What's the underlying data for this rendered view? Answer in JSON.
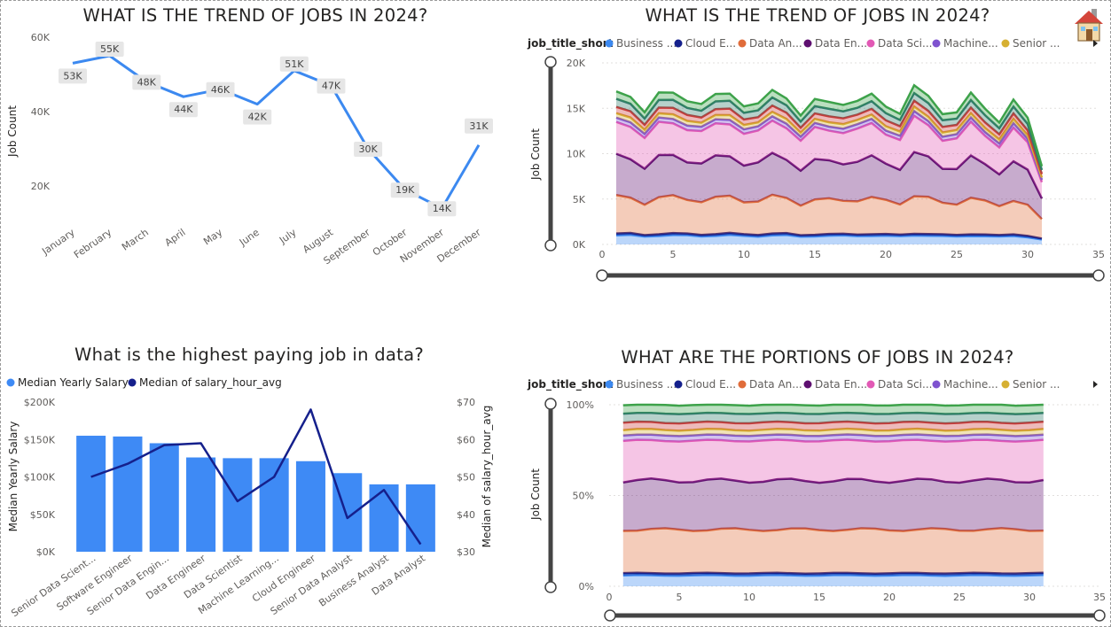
{
  "colors": {
    "blue": "#3c89f0",
    "navy": "#15208c",
    "bar": "#3e8af5",
    "orange": "#e06c3a",
    "purple": "#5e0f70",
    "pink": "#e259b5",
    "violet": "#7f53cf",
    "gold": "#d6b032",
    "red": "#cc3a3a",
    "teal": "#2f7a6b",
    "green": "#3da24a",
    "grid": "#e1dfdd",
    "slider": "#444444"
  },
  "icons": {
    "home": "house-icon",
    "legend_more": "caret-right-icon"
  },
  "chart_data": [
    {
      "type": "line",
      "title": "WHAT IS THE TREND OF JOBS IN 2024?",
      "xlabel": "",
      "ylabel": "Job Count",
      "ylim": [
        10000,
        60000
      ],
      "yticks": [
        "20K",
        "40K",
        "60K"
      ],
      "yticks_values": [
        20000,
        40000,
        60000
      ],
      "categories": [
        "January",
        "February",
        "March",
        "April",
        "May",
        "June",
        "July",
        "August",
        "September",
        "October",
        "November",
        "December"
      ],
      "values": [
        53000,
        55000,
        48000,
        44000,
        46000,
        42000,
        51000,
        47000,
        30000,
        19000,
        14000,
        31000
      ],
      "data_labels": [
        "53K",
        "55K",
        "48K",
        "44K",
        "46K",
        "42K",
        "51K",
        "47K",
        "30K",
        "19K",
        "14K",
        "31K"
      ]
    },
    {
      "type": "area",
      "stacked": true,
      "title": "WHAT IS THE TREND OF JOBS IN 2024?",
      "ylabel": "Job Count",
      "legend_title": "job_title_short",
      "legend_items": [
        "Business ...",
        "Cloud E...",
        "Data An...",
        "Data En...",
        "Data Sci...",
        "Machine...",
        "Senior ..."
      ],
      "x": [
        1,
        2,
        3,
        4,
        5,
        6,
        7,
        8,
        9,
        10,
        11,
        12,
        13,
        14,
        15,
        16,
        17,
        18,
        19,
        20,
        21,
        22,
        23,
        24,
        25,
        26,
        27,
        28,
        29,
        30,
        31
      ],
      "xlim": [
        0,
        35
      ],
      "xticks": [
        0,
        5,
        10,
        15,
        20,
        25,
        30,
        35
      ],
      "ylim": [
        0,
        20000
      ],
      "yticks": [
        "0K",
        "5K",
        "10K",
        "15K",
        "20K"
      ],
      "yticks_values": [
        0,
        5000,
        10000,
        15000,
        20000
      ],
      "totals": [
        16700,
        16700,
        14600,
        16300,
        16800,
        16200,
        15300,
        16200,
        16900,
        15500,
        15200,
        16800,
        16500,
        14300,
        15600,
        15700,
        15800,
        15700,
        16200,
        15400,
        14700,
        17200,
        16100,
        14700,
        14700,
        16300,
        14900,
        13800,
        15900,
        13600,
        8700
      ],
      "series": [
        {
          "name": "Business ...",
          "share": 0.06
        },
        {
          "name": "Cloud E...",
          "share": 0.012
        },
        {
          "name": "Data An...",
          "share": 0.24
        },
        {
          "name": "Data En...",
          "share": 0.27
        },
        {
          "name": "Data Sci...",
          "share": 0.22
        },
        {
          "name": "Machine...",
          "share": 0.03
        },
        {
          "name": "Senior ...",
          "share": 0.03
        },
        {
          "share": 0.04
        },
        {
          "share": 0.05
        },
        {
          "share": 0.048
        }
      ]
    },
    {
      "type": "bar",
      "title": "What is the highest paying job in data?",
      "legend_items": [
        "Median Yearly Salary",
        "Median of salary_hour_avg"
      ],
      "categories": [
        "Senior Data Scient...",
        "Software Engineer",
        "Senior Data Engin...",
        "Data Engineer",
        "Data Scientist",
        "Machine Learning...",
        "Cloud Engineer",
        "Senior Data Analyst",
        "Business Analyst",
        "Data Analyst"
      ],
      "ylabel": "Median Yearly Salary",
      "ylim": [
        0,
        200000
      ],
      "yticks": [
        "$0K",
        "$50K",
        "$100K",
        "$150K",
        "$200K"
      ],
      "yticks_values": [
        0,
        50000,
        100000,
        150000,
        200000
      ],
      "values": [
        155000,
        154000,
        145000,
        126000,
        125000,
        125000,
        121000,
        105000,
        90000,
        90000
      ],
      "y2label": "Median of salary_hour_avg",
      "y2lim": [
        30,
        70
      ],
      "y2ticks": [
        "$30",
        "$40",
        "$50",
        "$60",
        "$70"
      ],
      "y2ticks_values": [
        30,
        40,
        50,
        60,
        70
      ],
      "line_values": [
        50,
        53.5,
        58.5,
        59,
        43.5,
        50,
        68,
        39,
        46.5,
        32
      ]
    },
    {
      "type": "area",
      "stacked": true,
      "normalized": true,
      "title": "WHAT ARE THE PORTIONS OF JOBS IN 2024?",
      "ylabel": "Job Count",
      "legend_title": "job_title_short",
      "legend_items": [
        "Business ...",
        "Cloud E...",
        "Data An...",
        "Data En...",
        "Data Sci...",
        "Machine...",
        "Senior ..."
      ],
      "xlim": [
        0,
        35
      ],
      "xticks": [
        0,
        5,
        10,
        15,
        20,
        25,
        30,
        35
      ],
      "ylim": [
        0,
        1
      ],
      "yticks": [
        "0%",
        "50%",
        "100%"
      ],
      "yticks_values": [
        0,
        0.5,
        1
      ]
    }
  ]
}
